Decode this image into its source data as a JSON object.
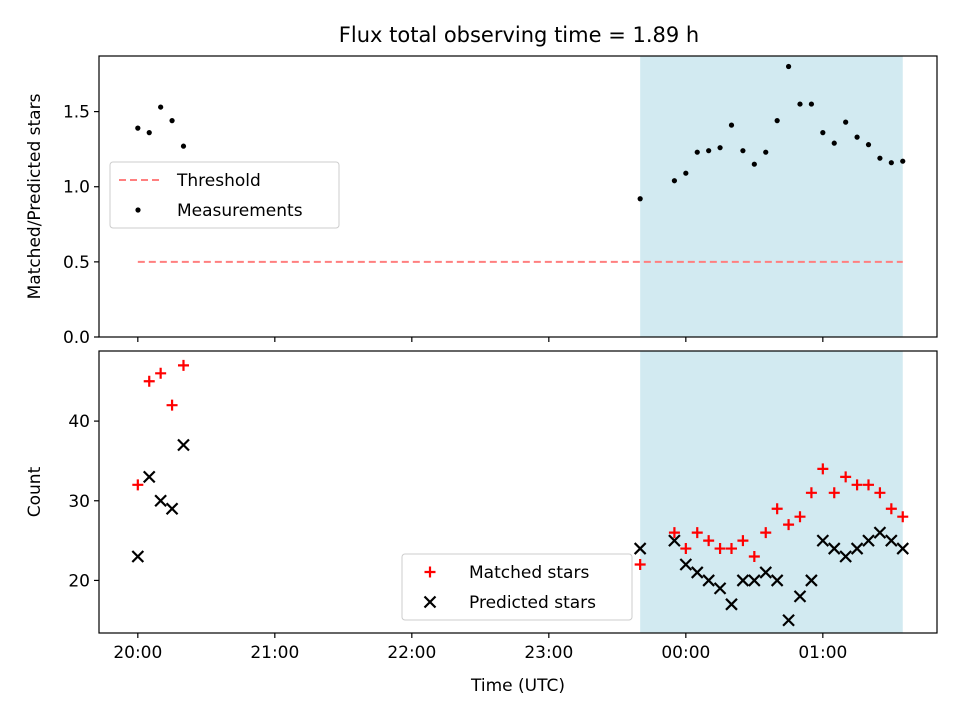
{
  "title": "Flux total observing time = 1.89 h",
  "chart_data": [
    {
      "type": "scatter",
      "ylabel": "Matched/Predicted stars",
      "ylim": [
        0,
        1.87
      ],
      "yticks": [
        0.0,
        0.5,
        1.0,
        1.5
      ],
      "ytick_labels": [
        "0.0",
        "0.5",
        "1.0",
        "1.5"
      ],
      "series": [
        {
          "name": "Measurements",
          "color": "#000000",
          "marker": "dot",
          "x": [
            "20:00",
            "20:05",
            "20:10",
            "20:15",
            "20:20",
            "23:40",
            "23:55",
            "24:00",
            "24:05",
            "24:10",
            "24:15",
            "24:20",
            "24:25",
            "24:30",
            "24:35",
            "24:40",
            "24:45",
            "24:50",
            "24:55",
            "25:00",
            "25:05",
            "25:10",
            "25:15",
            "25:20",
            "25:25",
            "25:30",
            "25:35"
          ],
          "y": [
            1.39,
            1.36,
            1.53,
            1.44,
            1.27,
            0.92,
            1.04,
            1.09,
            1.23,
            1.24,
            1.26,
            1.41,
            1.24,
            1.15,
            1.23,
            1.44,
            1.8,
            1.55,
            1.55,
            1.36,
            1.29,
            1.43,
            1.33,
            1.28,
            1.19,
            1.16,
            1.17
          ]
        },
        {
          "name": "Threshold",
          "color": "#ff7f7f",
          "style": "dashed",
          "x": [
            "20:00",
            "25:35"
          ],
          "y": [
            0.5,
            0.5
          ]
        }
      ],
      "shaded_region": {
        "x": [
          "23:40",
          "25:35"
        ],
        "color": "#add8e6"
      },
      "legend": [
        "Threshold",
        "Measurements"
      ],
      "legend_position": "upper-left",
      "grid": false
    },
    {
      "type": "scatter",
      "ylabel": "Count",
      "xlabel": "Time (UTC)",
      "ylim": [
        13.4,
        48.8
      ],
      "yticks": [
        20,
        30,
        40
      ],
      "ytick_labels": [
        "20",
        "30",
        "40"
      ],
      "xlim": [
        "19:43",
        "25:50"
      ],
      "xticks": [
        "20:00",
        "21:00",
        "22:00",
        "23:00",
        "24:00",
        "25:00"
      ],
      "xtick_labels": [
        "20:00",
        "21:00",
        "22:00",
        "23:00",
        "00:00",
        "01:00"
      ],
      "series": [
        {
          "name": "Matched stars",
          "color": "#ff0000",
          "marker": "plus",
          "x": [
            "20:00",
            "20:05",
            "20:10",
            "20:15",
            "20:20",
            "23:40",
            "23:55",
            "24:00",
            "24:05",
            "24:10",
            "24:15",
            "24:20",
            "24:25",
            "24:30",
            "24:35",
            "24:40",
            "24:45",
            "24:50",
            "24:55",
            "25:00",
            "25:05",
            "25:10",
            "25:15",
            "25:20",
            "25:25",
            "25:30",
            "25:35"
          ],
          "y": [
            32,
            45,
            46,
            42,
            47,
            22,
            26,
            24,
            26,
            25,
            24,
            24,
            25,
            23,
            26,
            29,
            27,
            28,
            31,
            34,
            31,
            33,
            32,
            32,
            31,
            29,
            28
          ]
        },
        {
          "name": "Predicted stars",
          "color": "#000000",
          "marker": "x",
          "x": [
            "20:00",
            "20:05",
            "20:10",
            "20:15",
            "20:20",
            "23:40",
            "23:55",
            "24:00",
            "24:05",
            "24:10",
            "24:15",
            "24:20",
            "24:25",
            "24:30",
            "24:35",
            "24:40",
            "24:45",
            "24:50",
            "24:55",
            "25:00",
            "25:05",
            "25:10",
            "25:15",
            "25:20",
            "25:25",
            "25:30",
            "25:35"
          ],
          "y": [
            23,
            33,
            30,
            29,
            37,
            24,
            25,
            22,
            21,
            20,
            19,
            17,
            20,
            20,
            21,
            20,
            15,
            18,
            20,
            25,
            24,
            23,
            24,
            25,
            26,
            25,
            24
          ]
        }
      ],
      "shaded_region": {
        "x": [
          "23:40",
          "25:35"
        ],
        "color": "#add8e6"
      },
      "legend": [
        "Matched stars",
        "Predicted stars"
      ],
      "legend_position": "lower-center",
      "grid": false
    }
  ]
}
